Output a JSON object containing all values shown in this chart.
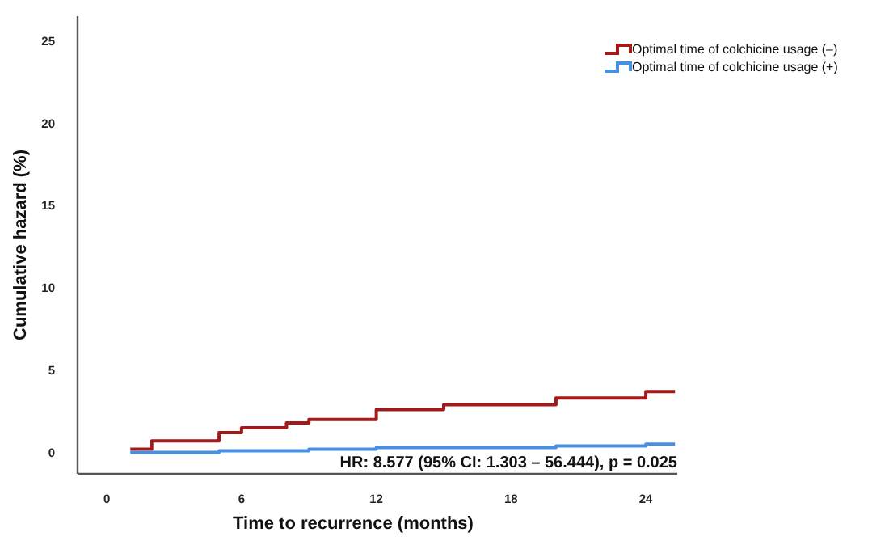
{
  "chart_data": {
    "type": "step",
    "xlabel": "Time to recurrence (months)",
    "ylabel": "Cumulative hazard (%)",
    "xlim": [
      -1.3,
      25.4
    ],
    "xticks": [
      0,
      6,
      12,
      18,
      24
    ],
    "ylim": [
      -1.3,
      26.5
    ],
    "yticks": [
      0,
      5,
      10,
      15,
      20,
      25
    ],
    "series": [
      {
        "name": "Optimal time of colchicine usage (–)",
        "color": "#a31a1a",
        "x": [
          1.05,
          2,
          5,
          6,
          8,
          9,
          12,
          15,
          20,
          24,
          25.3
        ],
        "values": [
          0.2,
          0.7,
          1.2,
          1.5,
          1.8,
          2,
          2.6,
          2.9,
          3.3,
          3.7,
          3.7
        ]
      },
      {
        "name": "Optimal time of colchicine usage (+)",
        "color": "#4a90e2",
        "x": [
          1.05,
          5,
          6,
          9,
          12,
          15,
          20,
          24,
          25.3
        ],
        "values": [
          0,
          0.1,
          0.1,
          0.2,
          0.3,
          0.3,
          0.4,
          0.5,
          0.5
        ]
      }
    ],
    "annotations": [
      "HR: 8.577 (95% CI: 1.303 – 56.444), p = 0.025"
    ],
    "legend": "top right",
    "grid": false
  }
}
